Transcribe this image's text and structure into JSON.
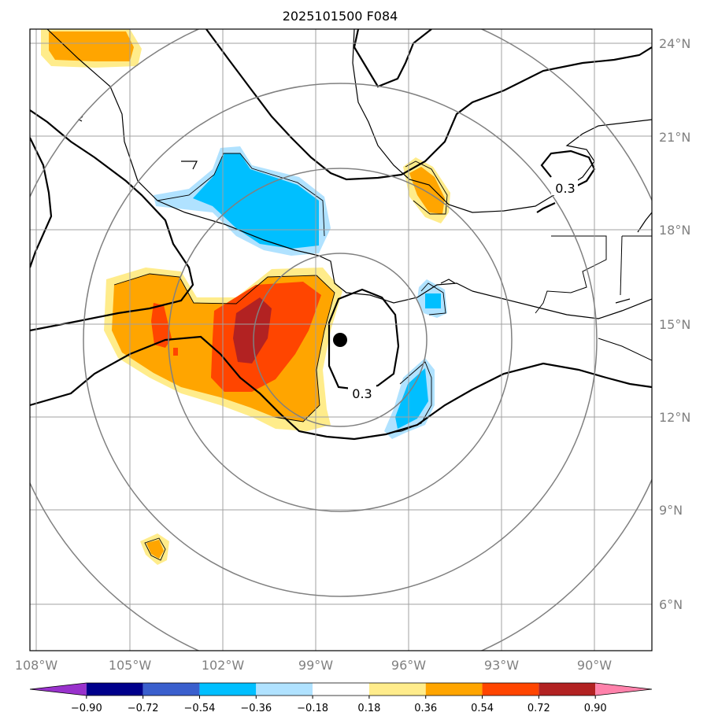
{
  "title": "2025101500 F084",
  "map": {
    "lat_labels": [
      "24°N",
      "21°N",
      "18°N",
      "15°N",
      "12°N",
      "9°N",
      "6°N"
    ],
    "lon_labels": [
      "108°W",
      "105°W",
      "102°W",
      "99°W",
      "96°W",
      "93°W",
      "90°W"
    ],
    "contour_labels": [
      "0.3",
      "0.3"
    ],
    "storm_center": {
      "lon": -98.0,
      "lat": 14.5
    },
    "gridlines": true
  },
  "colorbar": {
    "tick_labels": [
      "−0.90",
      "−0.72",
      "−0.54",
      "−0.36",
      "−0.18",
      "0.18",
      "0.36",
      "0.54",
      "0.72",
      "0.90"
    ],
    "colors": [
      "#9932cc",
      "#00008b",
      "#3a5fcd",
      "#00bfff",
      "#b0e2ff",
      "#ffffff",
      "#ffec8b",
      "#ffa500",
      "#ff4500",
      "#b22222",
      "#ff82ab"
    ],
    "extend": "both"
  },
  "fill_colors": {
    "pos_1": "#ffec8b",
    "pos_2": "#ffa500",
    "pos_3": "#ff4500",
    "pos_4": "#b22222",
    "neg_1": "#b0e2ff",
    "neg_2": "#00bfff"
  }
}
